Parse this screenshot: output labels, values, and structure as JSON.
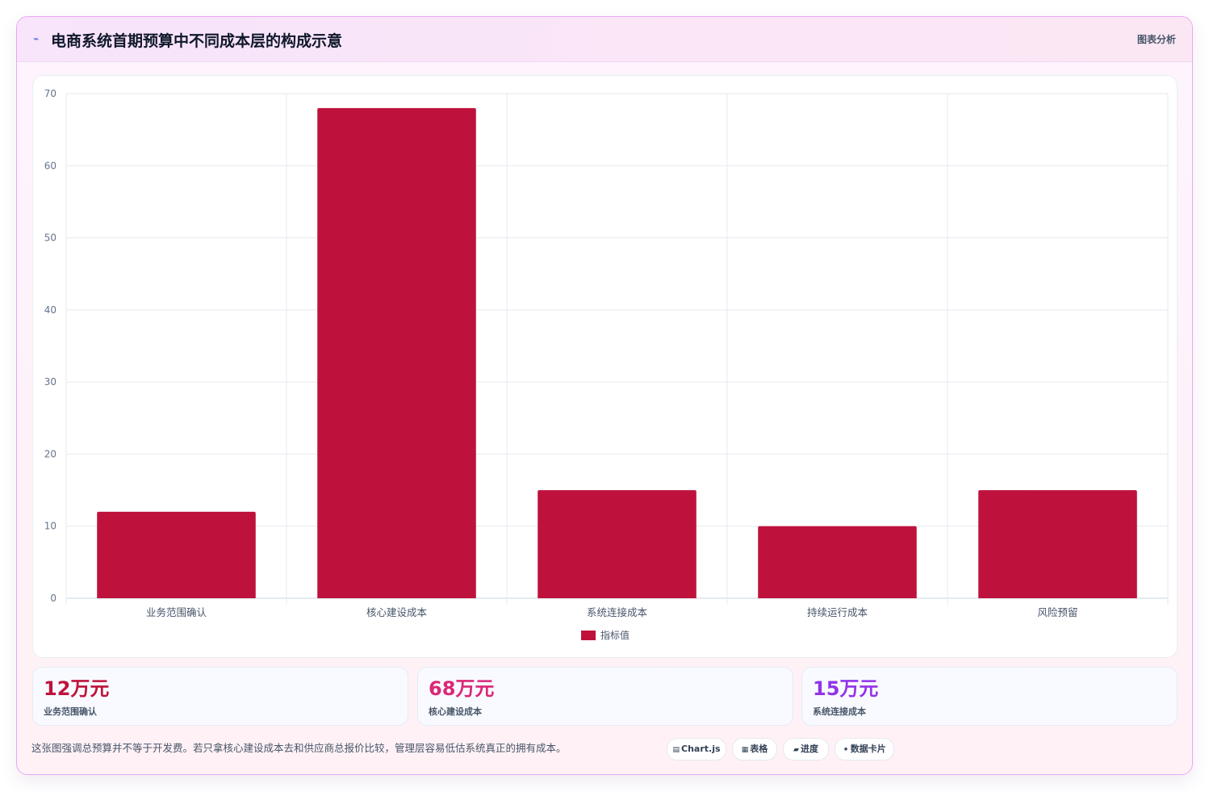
{
  "header": {
    "icon": "chart-line-icon",
    "title": "电商系统首期预算中不同成本层的构成示意",
    "tag": "图表分析"
  },
  "chart_data": {
    "type": "bar",
    "categories": [
      "业务范围确认",
      "核心建设成本",
      "系统连接成本",
      "持续运行成本",
      "风险预留"
    ],
    "series": [
      {
        "name": "指标值",
        "values": [
          12,
          68,
          15,
          10,
          15
        ],
        "color": "#be123c"
      }
    ],
    "ylim": [
      0,
      70
    ],
    "yticks": [
      0,
      10,
      20,
      30,
      40,
      50,
      60,
      70
    ],
    "grid": true,
    "legend": "bottom"
  },
  "stats": [
    {
      "value": "12万元",
      "label": "业务范围确认",
      "color": "#be123c"
    },
    {
      "value": "68万元",
      "label": "核心建设成本",
      "color": "#db2777"
    },
    {
      "value": "15万元",
      "label": "系统连接成本",
      "color": "#9333ea"
    }
  ],
  "note": "这张图强调总预算并不等于开发费。若只拿核心建设成本去和供应商总报价比较，管理层容易低估系统真正的拥有成本。",
  "pills": [
    {
      "icon": "chart-icon",
      "glyph": "▤",
      "label": "Chart.js"
    },
    {
      "icon": "table-icon",
      "glyph": "▦",
      "label": "表格"
    },
    {
      "icon": "progress-icon",
      "glyph": "▰",
      "label": "进度"
    },
    {
      "icon": "card-icon",
      "glyph": "✦",
      "label": "数据卡片"
    }
  ]
}
